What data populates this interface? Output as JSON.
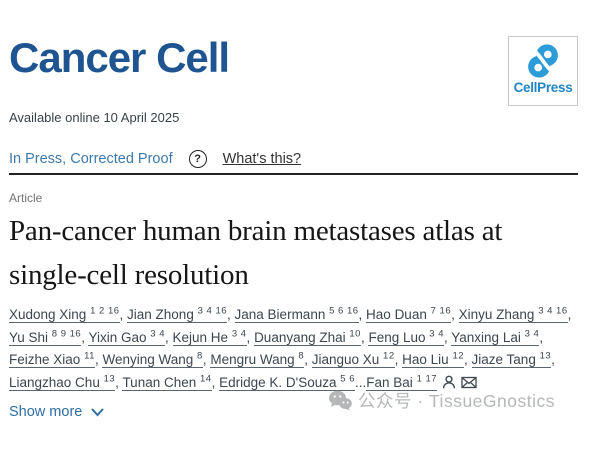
{
  "journal": {
    "name": "Cancer Cell",
    "publisher": "CellPress"
  },
  "meta": {
    "available_online": "Available online 10 April 2025",
    "status_link": "In Press, Corrected Proof",
    "help_glyph": "?",
    "whats_this": "What's this?"
  },
  "article": {
    "type_label": "Article",
    "title": "Pan-cancer human brain metastases atlas at single-cell resolution"
  },
  "authors": {
    "ellipsis": "...",
    "show_more": "Show more",
    "list": [
      {
        "name": "Xudong Xing",
        "sup": "1 2 16"
      },
      {
        "name": "Jian Zhong",
        "sup": "3 4 16"
      },
      {
        "name": "Jana Biermann",
        "sup": "5 6 16"
      },
      {
        "name": "Hao Duan",
        "sup": "7 16"
      },
      {
        "name": "Xinyu Zhang",
        "sup": "3 4 16"
      },
      {
        "name": "Yu Shi",
        "sup": "8 9 16"
      },
      {
        "name": "Yixin Gao",
        "sup": "3 4"
      },
      {
        "name": "Kejun He",
        "sup": "3 4"
      },
      {
        "name": "Duanyang Zhai",
        "sup": "10"
      },
      {
        "name": "Feng Luo",
        "sup": "3 4"
      },
      {
        "name": "Yanxing Lai",
        "sup": "3 4"
      },
      {
        "name": "Feizhe Xiao",
        "sup": "11"
      },
      {
        "name": "Wenying Wang",
        "sup": "8"
      },
      {
        "name": "Mengru Wang",
        "sup": "8"
      },
      {
        "name": "Jianguo Xu",
        "sup": "12"
      },
      {
        "name": "Hao Liu",
        "sup": "12"
      },
      {
        "name": "Jiaze Tang",
        "sup": "13"
      },
      {
        "name": "Liangzhao Chu",
        "sup": "13"
      },
      {
        "name": "Tunan Chen",
        "sup": "14"
      },
      {
        "name": "Edridge K. D'Souza",
        "sup": "5 6"
      },
      {
        "name": "Fan Bai",
        "sup": "1 17",
        "ellipsis_before": true
      }
    ]
  },
  "watermark": {
    "text": "公众号 · TissueGnostics"
  },
  "icons": {
    "help": "question-circle",
    "author": "person-outline",
    "correspondence": "envelope",
    "show_more": "chevron-down",
    "watermark": "wechat-bubbles",
    "publisher": "cellpress-swirl"
  },
  "colors": {
    "journal_navy": "#1e5591",
    "cellpress_blue": "#2b9cd8",
    "link_blue": "#3d7aac",
    "show_more_blue": "#2d6da3",
    "body_text": "#3c4650",
    "watermark_gray": "#b5b7b9"
  }
}
